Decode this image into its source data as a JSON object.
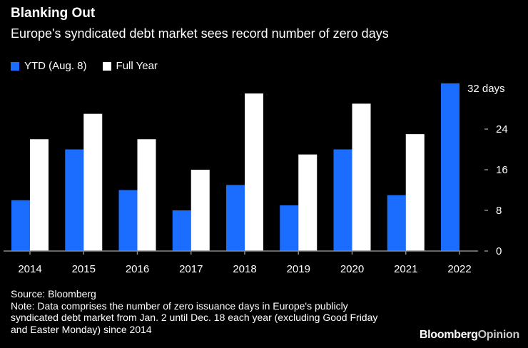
{
  "chart_data": {
    "type": "bar",
    "title": "Blanking Out",
    "subtitle": "Europe's syndicated debt market sees record number of zero days",
    "categories": [
      "2014",
      "2015",
      "2016",
      "2017",
      "2018",
      "2019",
      "2020",
      "2021",
      "2022"
    ],
    "series": [
      {
        "name": "YTD (Aug. 8)",
        "color": "#1a6dff",
        "values": [
          10,
          20,
          12,
          8,
          13,
          9,
          20,
          11,
          33
        ]
      },
      {
        "name": "Full Year",
        "color": "#ffffff",
        "values": [
          22,
          27,
          22,
          16,
          31,
          19,
          29,
          23,
          null
        ]
      }
    ],
    "yticks": [
      0,
      8,
      16,
      24,
      32
    ],
    "ytick_labels": [
      "0",
      "8",
      "16",
      "24",
      "32 days"
    ],
    "ylim": [
      0,
      34
    ],
    "xlabel": "",
    "ylabel": "",
    "grid": false,
    "legend": "top-left"
  },
  "footer": {
    "source": "Source: Bloomberg",
    "note": "Note: Data comprises the number of zero issuance days in Europe's publicly syndicated debt market from Jan. 2 until Dec. 18 each year (excluding Good Friday and Easter Monday) since 2014"
  },
  "logo": {
    "brand": "Bloomberg",
    "section": "Opinion"
  }
}
